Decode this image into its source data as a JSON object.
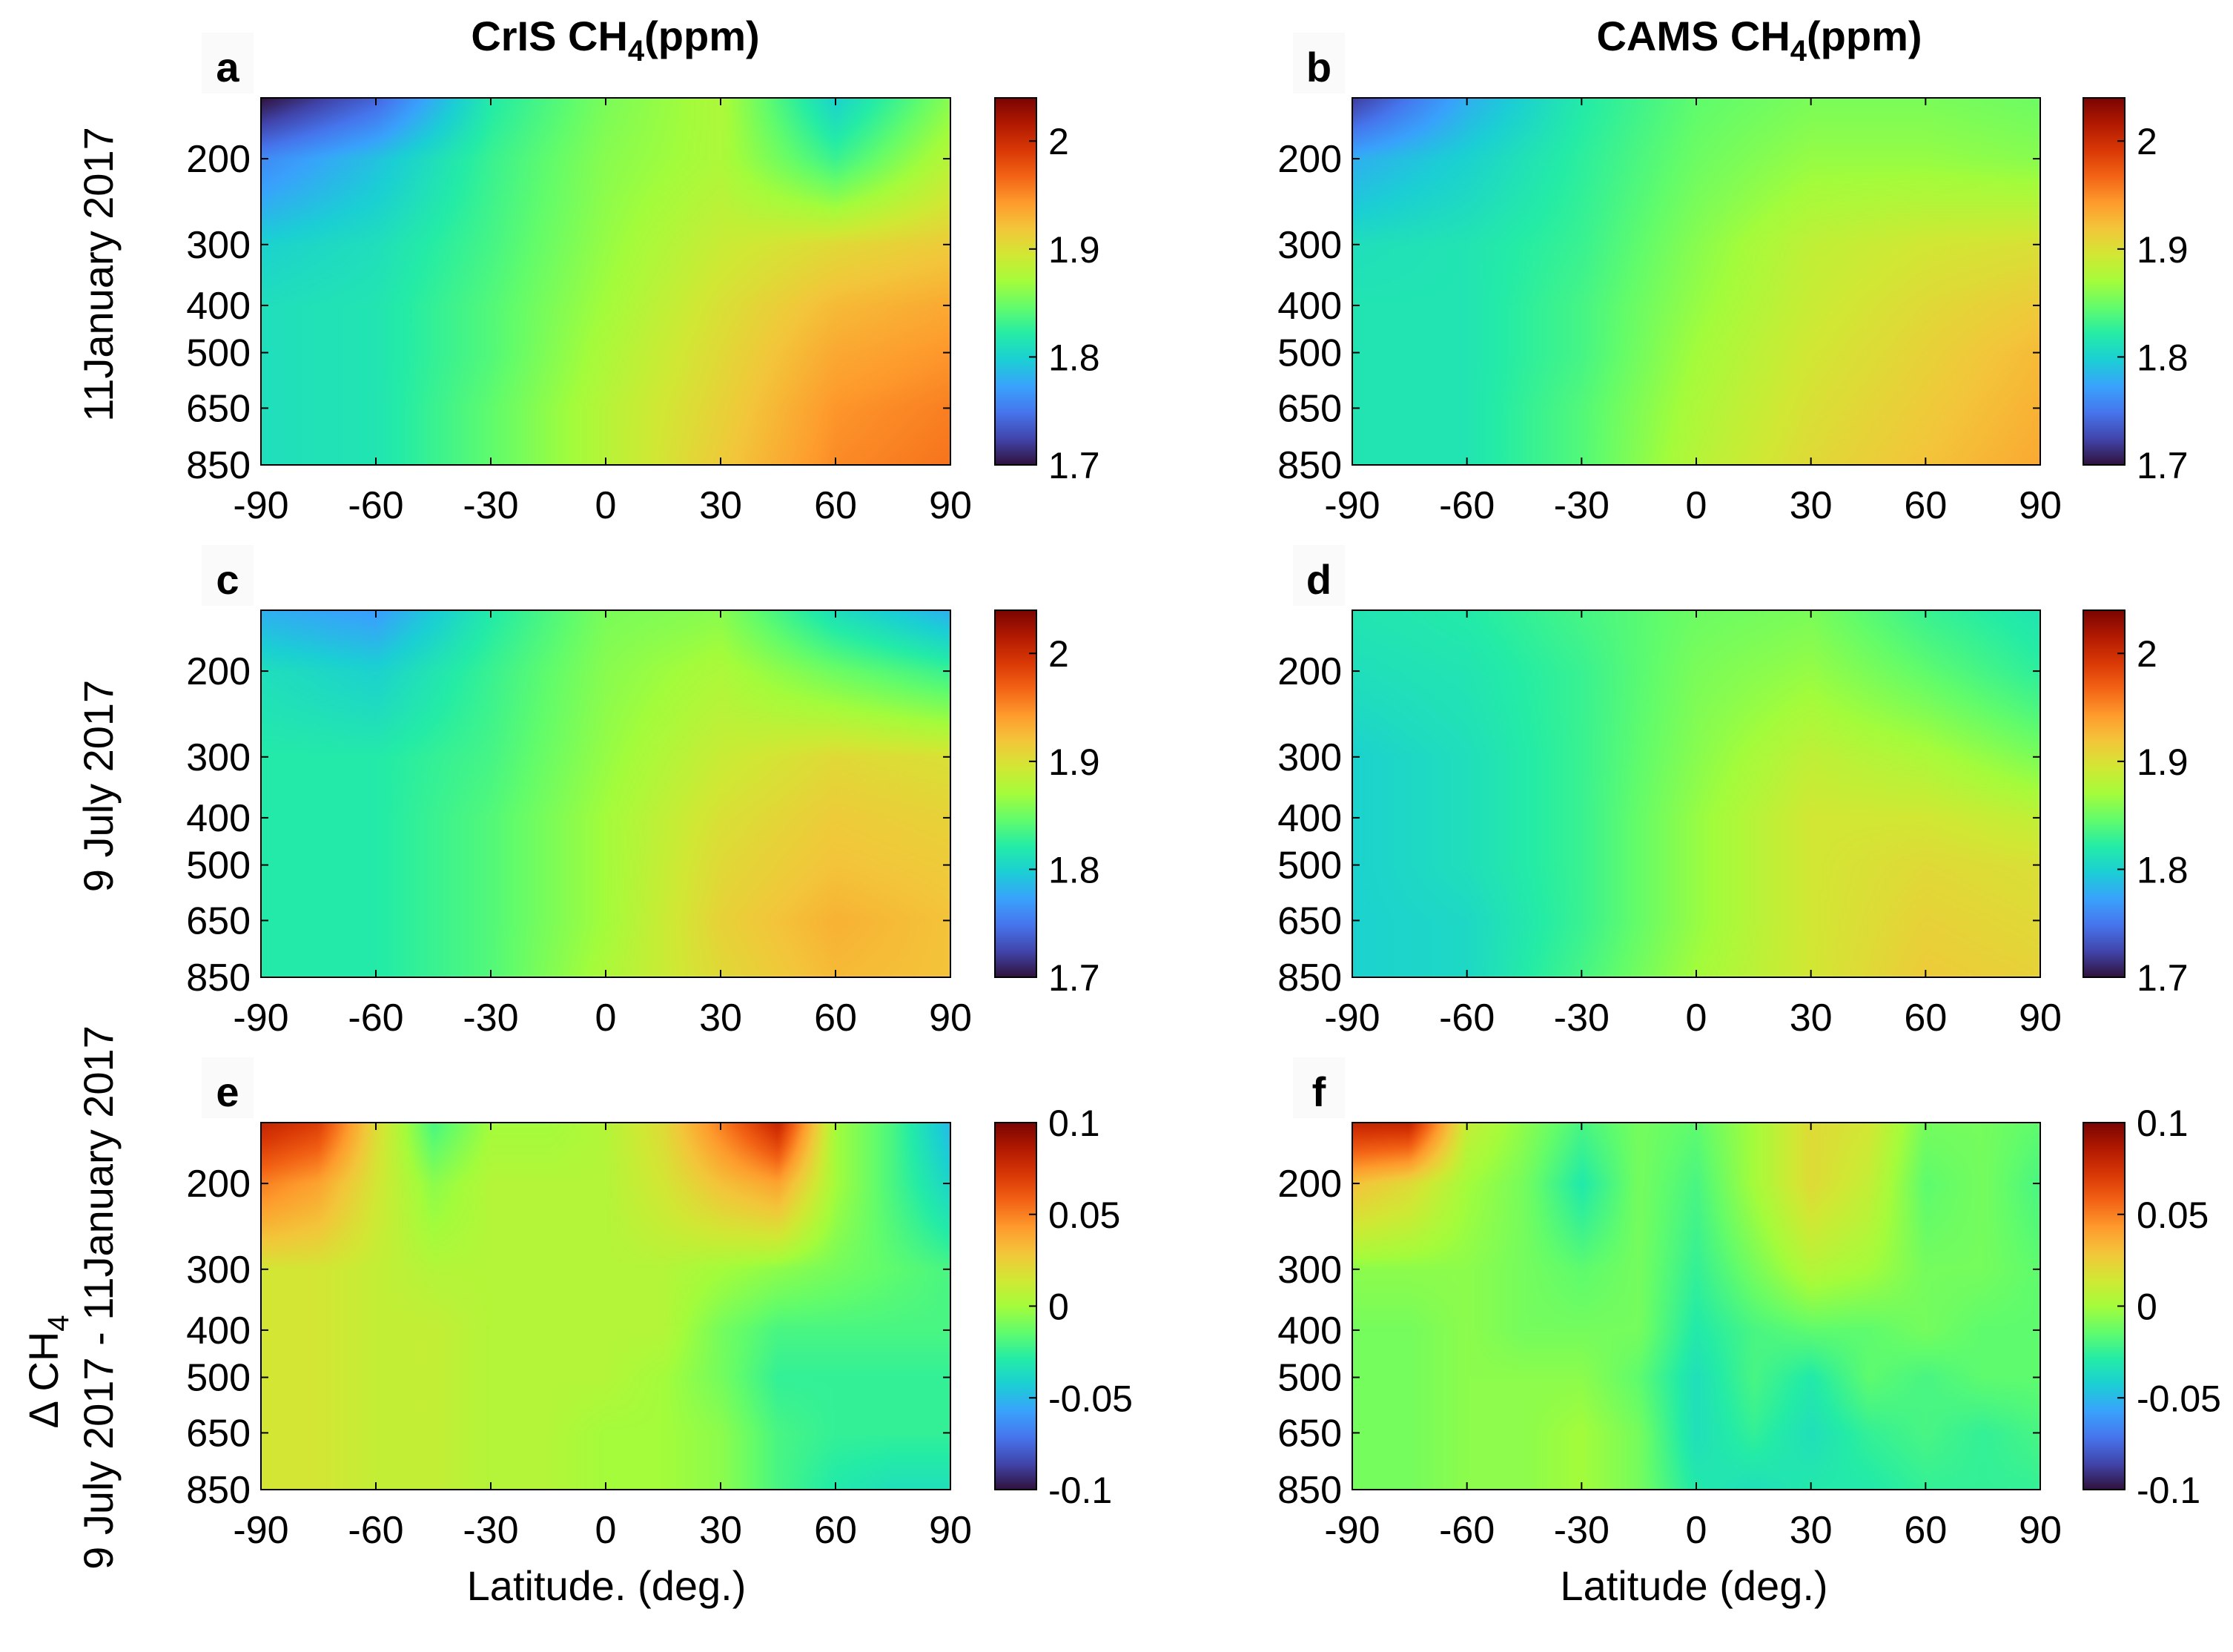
{
  "column_titles": [
    {
      "main": "CrIS CH",
      "sub": "4",
      "tail": "(ppm)"
    },
    {
      "main": "CAMS CH",
      "sub": "4",
      "tail": "(ppm)"
    }
  ],
  "row_labels": [
    {
      "lines": [
        "11January 2017"
      ]
    },
    {
      "lines": [
        "9 July 2017"
      ]
    },
    {
      "lines": [
        "Δ CH",
        "9 July 2017 - 11January 2017"
      ],
      "sub": "4"
    }
  ],
  "x_labels": [
    "Latitude. (deg.)",
    "Latitude (deg.)"
  ],
  "colors": {
    "turbo": [
      "#30123b",
      "#4145ab",
      "#4675ed",
      "#39a2fc",
      "#1bcfd4",
      "#24eca6",
      "#61fc6c",
      "#a4fc3b",
      "#d1e834",
      "#f3c63a",
      "#fe9b2d",
      "#f36315",
      "#d93806",
      "#b11901",
      "#7a0402"
    ]
  },
  "chart_data": [
    {
      "type": "heatmap",
      "panel": "a",
      "column": "CrIS",
      "date": "11January 2017",
      "x": [
        -90,
        -60,
        -30,
        0,
        30,
        60,
        90
      ],
      "x_ticks": [
        "-90",
        "-60",
        "-30",
        "0",
        "30",
        "60",
        "90"
      ],
      "y": [
        150,
        200,
        300,
        400,
        500,
        650,
        850
      ],
      "y_ticks": [
        "200",
        "300",
        "400",
        "500",
        "650",
        "850"
      ],
      "xlim": [
        -90,
        90
      ],
      "colorbar": {
        "range": [
          1.7,
          2.04
        ],
        "ticks": [
          "1.7",
          "1.8",
          "1.9",
          "2"
        ]
      },
      "z": [
        [
          1.7,
          1.74,
          1.82,
          1.855,
          1.875,
          1.8,
          1.86
        ],
        [
          1.76,
          1.79,
          1.83,
          1.86,
          1.875,
          1.83,
          1.88
        ],
        [
          1.8,
          1.81,
          1.835,
          1.865,
          1.89,
          1.905,
          1.915
        ],
        [
          1.81,
          1.815,
          1.84,
          1.87,
          1.9,
          1.925,
          1.935
        ],
        [
          1.81,
          1.815,
          1.84,
          1.875,
          1.905,
          1.935,
          1.945
        ],
        [
          1.81,
          1.815,
          1.845,
          1.88,
          1.91,
          1.945,
          1.955
        ],
        [
          1.81,
          1.815,
          1.845,
          1.88,
          1.915,
          1.95,
          1.96
        ]
      ]
    },
    {
      "type": "heatmap",
      "panel": "b",
      "column": "CAMS",
      "date": "11January 2017",
      "x": [
        -90,
        -60,
        -30,
        0,
        30,
        60,
        90
      ],
      "x_ticks": [
        "-90",
        "-60",
        "-30",
        "0",
        "30",
        "60",
        "90"
      ],
      "y": [
        150,
        200,
        300,
        400,
        500,
        650,
        850
      ],
      "y_ticks": [
        "200",
        "300",
        "400",
        "500",
        "650",
        "850"
      ],
      "xlim": [
        -90,
        90
      ],
      "colorbar": {
        "range": [
          1.7,
          2.04
        ],
        "ticks": [
          "1.7",
          "1.8",
          "1.9",
          "2"
        ]
      },
      "z": [
        [
          1.72,
          1.78,
          1.82,
          1.845,
          1.855,
          1.855,
          1.85
        ],
        [
          1.78,
          1.8,
          1.825,
          1.85,
          1.865,
          1.865,
          1.86
        ],
        [
          1.81,
          1.815,
          1.83,
          1.86,
          1.885,
          1.895,
          1.9
        ],
        [
          1.815,
          1.815,
          1.835,
          1.865,
          1.89,
          1.905,
          1.915
        ],
        [
          1.815,
          1.815,
          1.835,
          1.87,
          1.895,
          1.91,
          1.925
        ],
        [
          1.815,
          1.815,
          1.84,
          1.875,
          1.9,
          1.915,
          1.93
        ],
        [
          1.815,
          1.815,
          1.84,
          1.88,
          1.905,
          1.92,
          1.935
        ]
      ]
    },
    {
      "type": "heatmap",
      "panel": "c",
      "column": "CrIS",
      "date": "9 July 2017",
      "x": [
        -90,
        -60,
        -30,
        0,
        30,
        60,
        90
      ],
      "x_ticks": [
        "-90",
        "-60",
        "-30",
        "0",
        "30",
        "60",
        "90"
      ],
      "y": [
        150,
        200,
        300,
        400,
        500,
        650,
        850
      ],
      "y_ticks": [
        "200",
        "300",
        "400",
        "500",
        "650",
        "850"
      ],
      "xlim": [
        -90,
        90
      ],
      "colorbar": {
        "range": [
          1.7,
          2.04
        ],
        "ticks": [
          "1.7",
          "1.8",
          "1.9",
          "2"
        ]
      },
      "z": [
        [
          1.78,
          1.77,
          1.82,
          1.855,
          1.86,
          1.81,
          1.78
        ],
        [
          1.81,
          1.8,
          1.83,
          1.86,
          1.875,
          1.85,
          1.83
        ],
        [
          1.82,
          1.82,
          1.835,
          1.865,
          1.89,
          1.905,
          1.9
        ],
        [
          1.82,
          1.82,
          1.84,
          1.87,
          1.9,
          1.915,
          1.91
        ],
        [
          1.82,
          1.82,
          1.84,
          1.87,
          1.905,
          1.92,
          1.915
        ],
        [
          1.82,
          1.82,
          1.84,
          1.87,
          1.91,
          1.93,
          1.92
        ],
        [
          1.82,
          1.82,
          1.84,
          1.875,
          1.905,
          1.925,
          1.92
        ]
      ]
    },
    {
      "type": "heatmap",
      "panel": "d",
      "column": "CAMS",
      "date": "9 July 2017",
      "x": [
        -90,
        -60,
        -30,
        0,
        30,
        60,
        90
      ],
      "x_ticks": [
        "-90",
        "-60",
        "-30",
        "0",
        "30",
        "60",
        "90"
      ],
      "y": [
        150,
        200,
        300,
        400,
        500,
        650,
        850
      ],
      "y_ticks": [
        "200",
        "300",
        "400",
        "500",
        "650",
        "850"
      ],
      "xlim": [
        -90,
        90
      ],
      "colorbar": {
        "range": [
          1.7,
          2.04
        ],
        "ticks": [
          "1.7",
          "1.8",
          "1.9",
          "2"
        ]
      },
      "z": [
        [
          1.815,
          1.82,
          1.835,
          1.85,
          1.855,
          1.83,
          1.815
        ],
        [
          1.81,
          1.815,
          1.83,
          1.855,
          1.865,
          1.845,
          1.825
        ],
        [
          1.8,
          1.81,
          1.83,
          1.86,
          1.885,
          1.875,
          1.855
        ],
        [
          1.8,
          1.81,
          1.83,
          1.865,
          1.895,
          1.895,
          1.885
        ],
        [
          1.8,
          1.81,
          1.83,
          1.865,
          1.895,
          1.905,
          1.9
        ],
        [
          1.8,
          1.805,
          1.83,
          1.865,
          1.895,
          1.91,
          1.905
        ],
        [
          1.8,
          1.805,
          1.835,
          1.87,
          1.895,
          1.915,
          1.91
        ]
      ]
    },
    {
      "type": "heatmap",
      "panel": "e",
      "column": "CrIS",
      "date": "9 July 2017 - 11January 2017",
      "x": [
        -90,
        -75,
        -60,
        -45,
        -30,
        -15,
        0,
        15,
        30,
        45,
        60,
        75,
        90
      ],
      "x_ticks": [
        "-90",
        "-60",
        "-30",
        "0",
        "30",
        "60",
        "90"
      ],
      "y": [
        150,
        200,
        300,
        400,
        500,
        650,
        850
      ],
      "y_ticks": [
        "200",
        "300",
        "400",
        "500",
        "650",
        "850"
      ],
      "xlim": [
        -90,
        90
      ],
      "colorbar": {
        "range": [
          -0.1,
          0.1
        ],
        "ticks": [
          "-0.1",
          "-0.05",
          "0",
          "0.05",
          "0.1"
        ]
      },
      "z": [
        [
          0.08,
          0.07,
          0.02,
          -0.02,
          0.0,
          0.0,
          0.005,
          0.02,
          0.05,
          0.08,
          0.0,
          -0.02,
          -0.05
        ],
        [
          0.05,
          0.04,
          0.015,
          -0.005,
          0.005,
          0.005,
          0.005,
          0.015,
          0.03,
          0.04,
          0.0,
          -0.02,
          -0.04
        ],
        [
          0.015,
          0.015,
          0.01,
          0.005,
          0.005,
          0.005,
          0.005,
          0.005,
          0.0,
          -0.005,
          -0.01,
          -0.015,
          -0.02
        ],
        [
          0.015,
          0.015,
          0.01,
          0.01,
          0.005,
          0.005,
          0.005,
          0.005,
          -0.01,
          -0.02,
          -0.02,
          -0.02,
          -0.02
        ],
        [
          0.015,
          0.015,
          0.01,
          0.01,
          0.005,
          0.005,
          0.005,
          0.0,
          -0.01,
          -0.025,
          -0.025,
          -0.025,
          -0.025
        ],
        [
          0.015,
          0.015,
          0.01,
          0.01,
          0.005,
          0.005,
          0.0,
          0.0,
          -0.005,
          -0.02,
          -0.025,
          -0.025,
          -0.025
        ],
        [
          0.015,
          0.015,
          0.01,
          0.01,
          0.005,
          0.005,
          0.0,
          0.0,
          -0.005,
          -0.02,
          -0.03,
          -0.035,
          -0.035
        ]
      ]
    },
    {
      "type": "heatmap",
      "panel": "f",
      "column": "CAMS",
      "date": "9 July 2017 - 11January 2017",
      "x": [
        -90,
        -75,
        -60,
        -45,
        -30,
        -15,
        0,
        15,
        30,
        45,
        60,
        75,
        90
      ],
      "x_ticks": [
        "-90",
        "-60",
        "-30",
        "0",
        "30",
        "60",
        "90"
      ],
      "y": [
        150,
        200,
        300,
        400,
        500,
        650,
        850
      ],
      "y_ticks": [
        "200",
        "300",
        "400",
        "500",
        "650",
        "850"
      ],
      "xlim": [
        -90,
        90
      ],
      "colorbar": {
        "range": [
          -0.1,
          0.1
        ],
        "ticks": [
          "-0.1",
          "-0.05",
          "0",
          "0.05",
          "0.1"
        ]
      },
      "z": [
        [
          0.08,
          0.08,
          0.01,
          -0.005,
          -0.02,
          -0.01,
          -0.015,
          0.0,
          0.02,
          0.015,
          -0.01,
          -0.01,
          -0.015
        ],
        [
          0.03,
          0.02,
          0.0,
          -0.01,
          -0.03,
          -0.01,
          -0.02,
          0.0,
          0.02,
          0.01,
          -0.015,
          -0.01,
          -0.02
        ],
        [
          -0.005,
          -0.005,
          -0.005,
          -0.01,
          -0.015,
          -0.01,
          -0.025,
          -0.01,
          0.005,
          0.0,
          -0.01,
          -0.01,
          -0.015
        ],
        [
          -0.01,
          -0.01,
          -0.005,
          -0.01,
          -0.01,
          -0.01,
          -0.03,
          -0.02,
          -0.015,
          -0.015,
          -0.01,
          -0.015,
          -0.015
        ],
        [
          -0.01,
          -0.01,
          -0.005,
          -0.005,
          -0.005,
          -0.015,
          -0.035,
          -0.02,
          -0.03,
          -0.015,
          -0.02,
          -0.015,
          -0.015
        ],
        [
          -0.01,
          -0.01,
          -0.005,
          -0.005,
          0.0,
          -0.01,
          -0.035,
          -0.025,
          -0.035,
          -0.025,
          -0.02,
          -0.025,
          -0.02
        ],
        [
          -0.01,
          -0.01,
          -0.005,
          -0.005,
          0.0,
          -0.01,
          -0.03,
          -0.035,
          -0.03,
          -0.03,
          -0.025,
          -0.025,
          -0.025
        ]
      ]
    }
  ]
}
